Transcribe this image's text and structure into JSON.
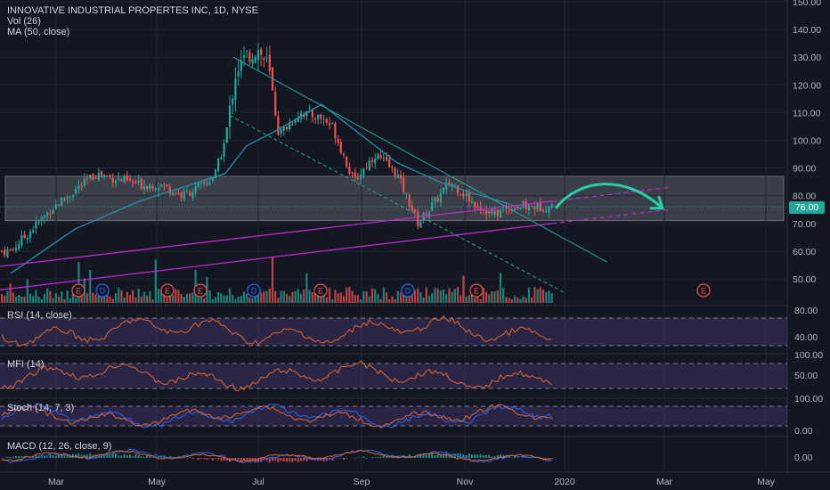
{
  "header": {
    "title": "INNOVATIVE INDUSTRIAL PROPERTES INC, 1D, NYSE",
    "vol_label": "Vol (26)",
    "ma_label": "MA (50, close)"
  },
  "price_badge": "76.00",
  "panes": {
    "rsi_label": "RSI (14, close)",
    "mfi_label": "MFI (14)",
    "stoch_label": "Stoch (14, 7, 3)",
    "macd_label": "MACD (12, 26, close, 9)"
  },
  "events": [
    "E",
    "D",
    "E",
    "E",
    "D",
    "E",
    "D",
    "E",
    "E"
  ],
  "colors": {
    "background": "#131722",
    "up": "#26a69a",
    "down": "#ef5350",
    "ma": "#2a8fa8",
    "channel": "#c026d3",
    "trend": "#26a69a",
    "arrow": "#26d0a4",
    "oscillator_band": "#7e57c2",
    "rsi_line": "#e0662a"
  },
  "chart_data": [
    {
      "type": "candlestick",
      "title": "INNOVATIVE INDUSTRIAL PROPERTES INC, 1D, NYSE",
      "y_ticks": [
        50,
        60,
        70,
        80,
        90,
        100,
        110,
        120,
        130,
        140,
        150
      ],
      "y_tick_labels": [
        "50.00",
        "60.00",
        "70.00",
        "80.00",
        "90.00",
        "100.00",
        "110.00",
        "120.00",
        "130.00",
        "140.00",
        "150.00"
      ],
      "ylim": [
        43,
        150
      ],
      "x_tick_labels": [
        "Mar",
        "May",
        "Jul",
        "Sep",
        "Nov",
        "2020",
        "Mar",
        "May"
      ],
      "last_price": 76.0,
      "resistance_zone": [
        71,
        87
      ],
      "series": [
        {
          "name": "Price (close)",
          "x": [
            "2019-01-28",
            "2019-02-11",
            "2019-02-25",
            "2019-03-11",
            "2019-03-25",
            "2019-04-08",
            "2019-04-22",
            "2019-05-06",
            "2019-05-20",
            "2019-06-03",
            "2019-06-10",
            "2019-06-17",
            "2019-06-24",
            "2019-07-01",
            "2019-07-08",
            "2019-07-15",
            "2019-07-22",
            "2019-08-05",
            "2019-08-19",
            "2019-08-26",
            "2019-09-09",
            "2019-09-23",
            "2019-10-07",
            "2019-10-21",
            "2019-11-04",
            "2019-11-11",
            "2019-11-25",
            "2019-12-09",
            "2019-12-20"
          ],
          "values": [
            60,
            68,
            76,
            82,
            88,
            86,
            84,
            84,
            80,
            84,
            87,
            100,
            125,
            130,
            133,
            127,
            102,
            110,
            108,
            105,
            85,
            95,
            88,
            70,
            80,
            85,
            78,
            73,
            76
          ]
        },
        {
          "name": "MA (50, close)",
          "x": [
            "2019-01-28",
            "2019-03-11",
            "2019-04-22",
            "2019-05-20",
            "2019-06-17",
            "2019-07-01",
            "2019-07-22",
            "2019-08-19",
            "2019-09-09",
            "2019-10-07",
            "2019-11-04",
            "2019-11-25",
            "2019-12-20"
          ],
          "values": [
            52,
            68,
            78,
            83,
            88,
            98,
            104,
            113,
            104,
            92,
            85,
            81,
            77
          ]
        }
      ]
    },
    {
      "type": "line",
      "title": "RSI (14, close)",
      "y_tick_labels": [
        "40.00",
        "80.00"
      ],
      "ylim": [
        20,
        90
      ],
      "levels": [
        30,
        70
      ]
    },
    {
      "type": "line",
      "title": "MFI (14)",
      "y_tick_labels": [
        "50.00",
        "100.00"
      ],
      "ylim": [
        0,
        100
      ],
      "levels": [
        20,
        80
      ]
    },
    {
      "type": "line",
      "title": "Stoch (14, 7, 3)",
      "y_tick_labels": [
        "0.00",
        "100.00"
      ],
      "ylim": [
        0,
        100
      ],
      "levels": [
        20,
        80
      ]
    },
    {
      "type": "bar",
      "title": "MACD (12, 26, close, 9)",
      "y_tick_labels": [
        "0.00"
      ]
    }
  ]
}
